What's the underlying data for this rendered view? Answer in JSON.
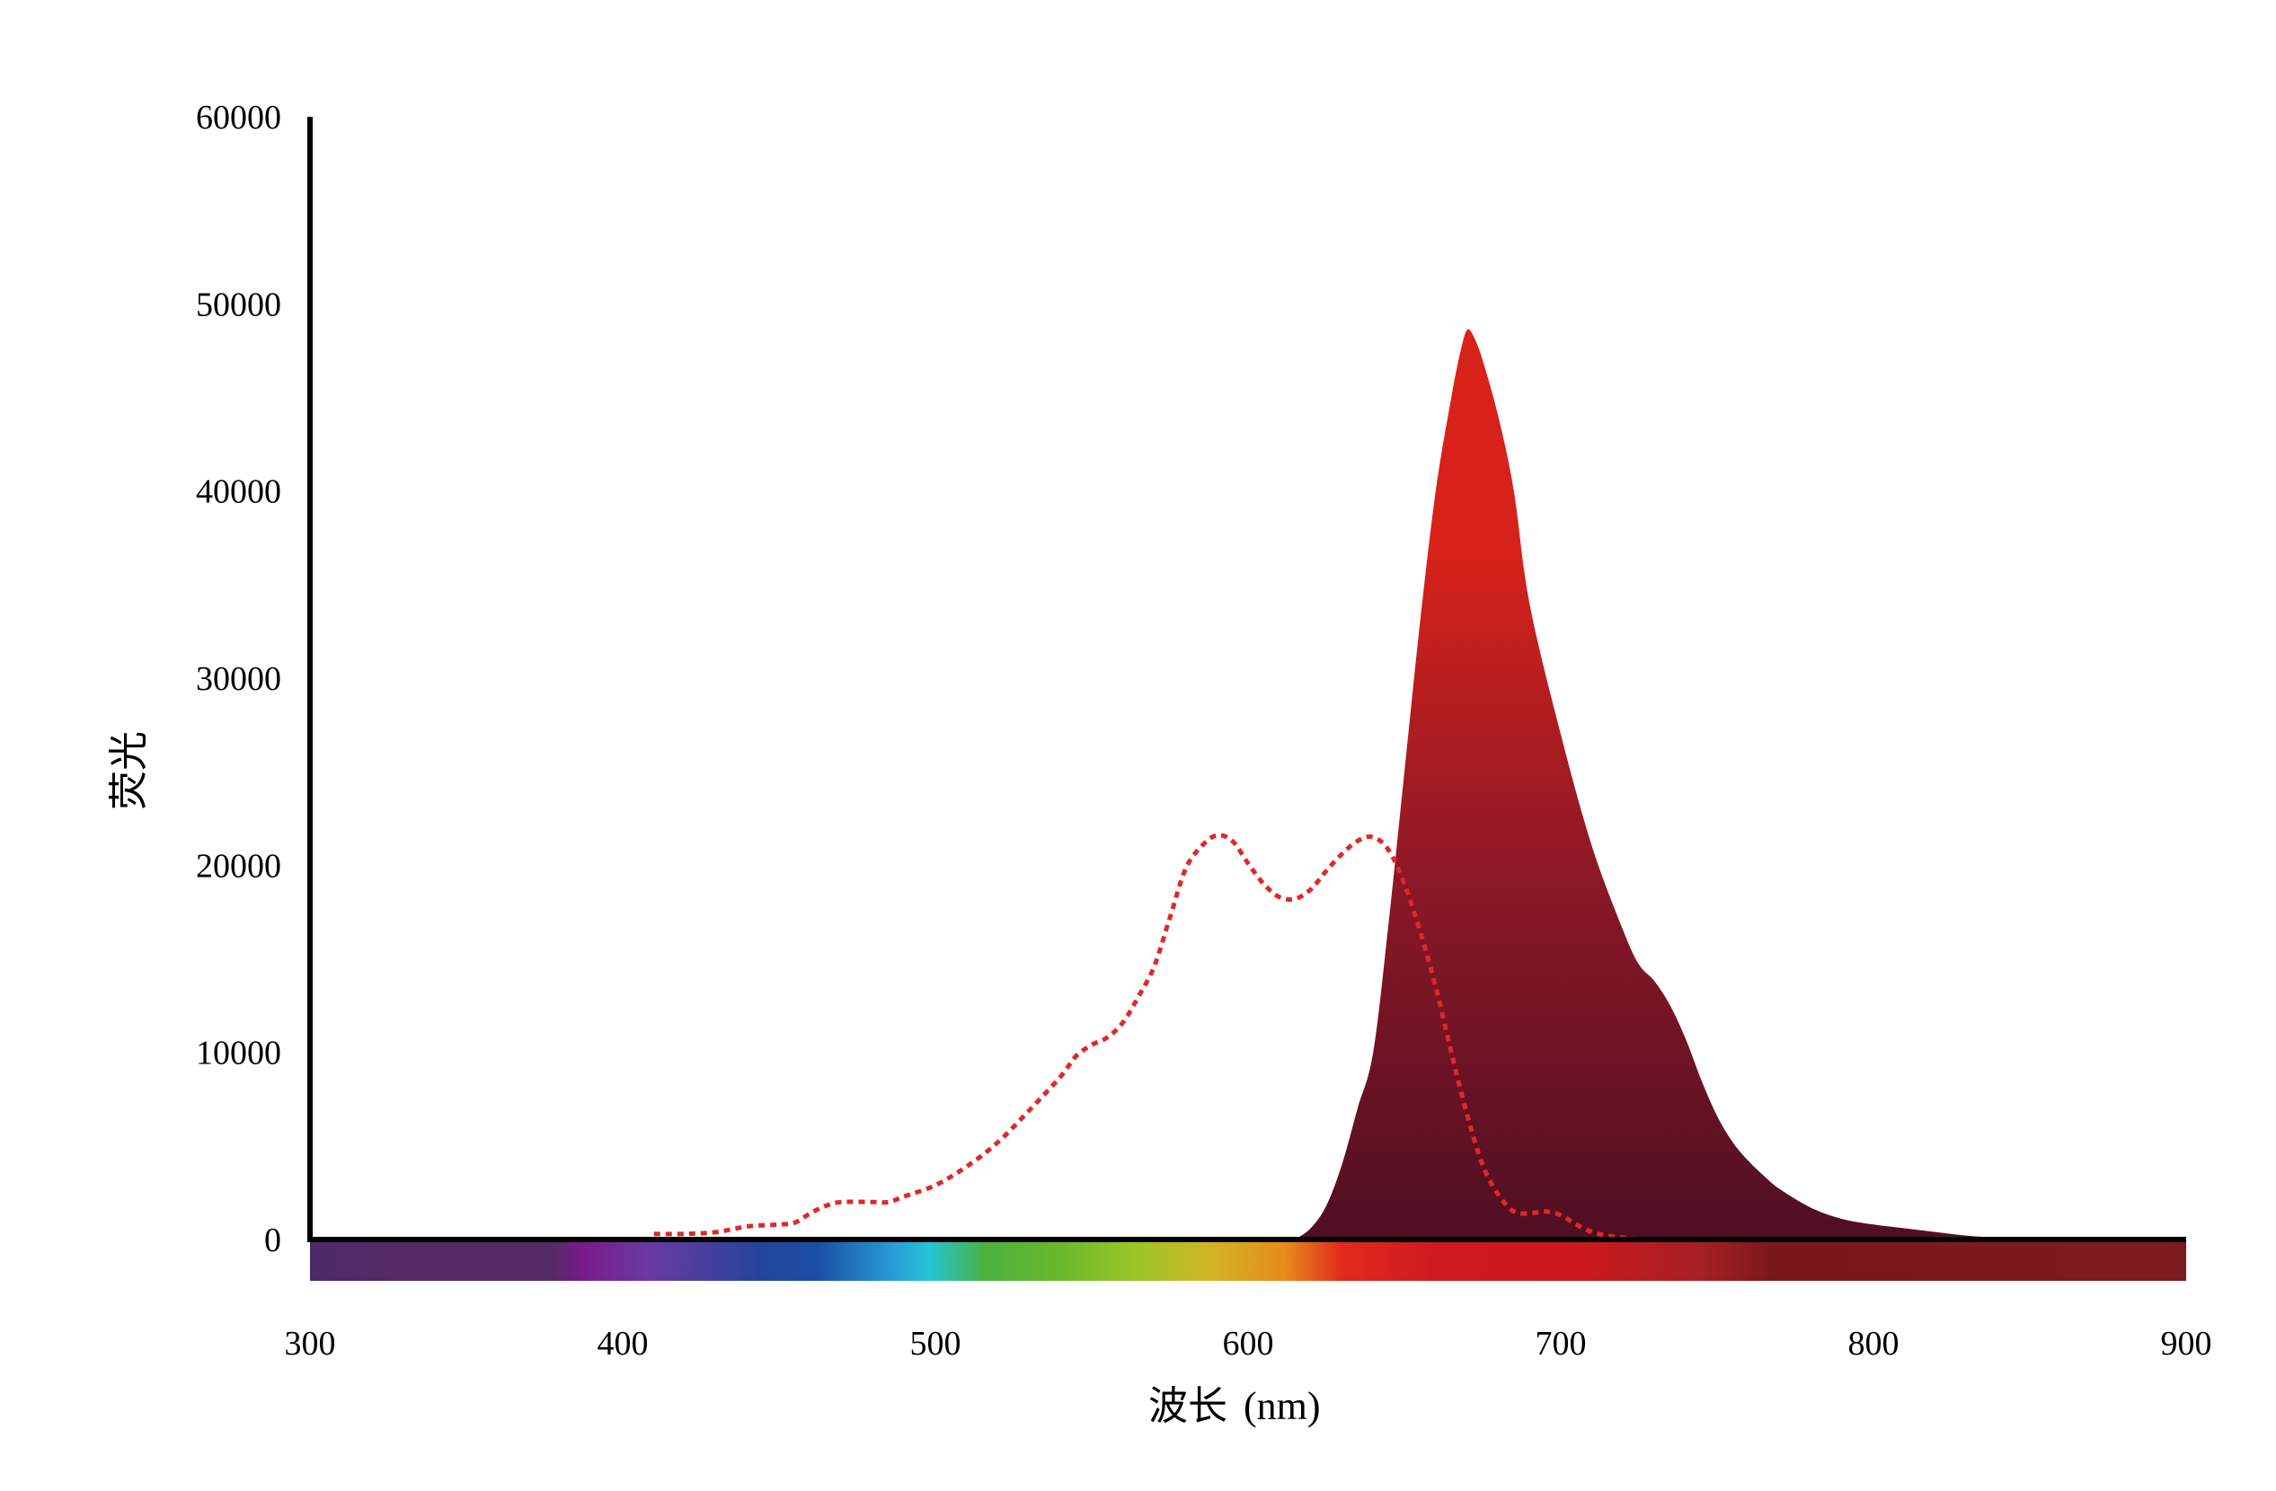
{
  "chart_data": {
    "type": "area",
    "title": "",
    "xlabel": "波长",
    "xlabel_unit": "(nm)",
    "ylabel": "荧光",
    "xlim": [
      300,
      900
    ],
    "ylim": [
      0,
      60000
    ],
    "x_ticks": [
      "300",
      "400",
      "500",
      "600",
      "700",
      "800",
      "900"
    ],
    "y_ticks": [
      "0",
      "10000",
      "20000",
      "30000",
      "40000",
      "50000",
      "60000"
    ],
    "grid": false,
    "legend": "none",
    "series": [
      {
        "style": "dotted-line",
        "color": "#e0282a",
        "points": [
          [
            410,
            300
          ],
          [
            420,
            300
          ],
          [
            430,
            400
          ],
          [
            440,
            700
          ],
          [
            450,
            800
          ],
          [
            455,
            900
          ],
          [
            460,
            1400
          ],
          [
            465,
            1800
          ],
          [
            470,
            2000
          ],
          [
            480,
            2000
          ],
          [
            485,
            2000
          ],
          [
            490,
            2300
          ],
          [
            500,
            2900
          ],
          [
            510,
            3900
          ],
          [
            520,
            5200
          ],
          [
            530,
            6900
          ],
          [
            540,
            8700
          ],
          [
            545,
            9800
          ],
          [
            550,
            10400
          ],
          [
            555,
            10800
          ],
          [
            560,
            11600
          ],
          [
            565,
            13000
          ],
          [
            570,
            14600
          ],
          [
            575,
            17200
          ],
          [
            580,
            19800
          ],
          [
            585,
            21000
          ],
          [
            590,
            21600
          ],
          [
            595,
            21300
          ],
          [
            600,
            20100
          ],
          [
            605,
            19000
          ],
          [
            610,
            18300
          ],
          [
            615,
            18200
          ],
          [
            620,
            18700
          ],
          [
            625,
            19700
          ],
          [
            630,
            20600
          ],
          [
            635,
            21300
          ],
          [
            640,
            21500
          ],
          [
            645,
            20800
          ],
          [
            650,
            19000
          ],
          [
            655,
            16500
          ],
          [
            660,
            13500
          ],
          [
            665,
            10000
          ],
          [
            670,
            6700
          ],
          [
            675,
            4000
          ],
          [
            680,
            2400
          ],
          [
            685,
            1500
          ],
          [
            690,
            1400
          ],
          [
            695,
            1500
          ],
          [
            700,
            1300
          ],
          [
            705,
            800
          ],
          [
            710,
            400
          ],
          [
            715,
            200
          ],
          [
            720,
            100
          ],
          [
            725,
            0
          ]
        ]
      },
      {
        "style": "filled-area",
        "color_top": "#d92219",
        "color_bottom": "#4e0f22",
        "points": [
          [
            615,
            0
          ],
          [
            620,
            600
          ],
          [
            625,
            1800
          ],
          [
            630,
            4000
          ],
          [
            635,
            7000
          ],
          [
            640,
            10000
          ],
          [
            645,
            17000
          ],
          [
            650,
            25000
          ],
          [
            655,
            33000
          ],
          [
            660,
            40000
          ],
          [
            665,
            45000
          ],
          [
            668,
            47500
          ],
          [
            670,
            48600
          ],
          [
            672,
            48300
          ],
          [
            675,
            47000
          ],
          [
            680,
            44000
          ],
          [
            685,
            40000
          ],
          [
            690,
            34000
          ],
          [
            700,
            27000
          ],
          [
            710,
            21000
          ],
          [
            720,
            16500
          ],
          [
            725,
            14700
          ],
          [
            730,
            13800
          ],
          [
            735,
            12500
          ],
          [
            740,
            10700
          ],
          [
            745,
            8500
          ],
          [
            750,
            6600
          ],
          [
            755,
            5200
          ],
          [
            760,
            4200
          ],
          [
            765,
            3400
          ],
          [
            770,
            2700
          ],
          [
            780,
            1700
          ],
          [
            790,
            1100
          ],
          [
            800,
            800
          ],
          [
            810,
            600
          ],
          [
            820,
            400
          ],
          [
            830,
            200
          ],
          [
            840,
            100
          ],
          [
            850,
            50
          ],
          [
            860,
            0
          ],
          [
            900,
            0
          ]
        ]
      }
    ]
  },
  "spectrum_colors": [
    "#4a2a6a",
    "#552a64",
    "#7a1a8c",
    "#6b3aa0",
    "#23449c",
    "#1a4ea6",
    "#2a9ad6",
    "#26c4d6",
    "#4ab23c",
    "#6ab82c",
    "#9cc628",
    "#d2b422",
    "#e88a1c",
    "#e22a1c",
    "#cc1a20",
    "#ca1a1e",
    "#a62024",
    "#7a1818",
    "#7c1a1a",
    "#7c1a1e"
  ]
}
